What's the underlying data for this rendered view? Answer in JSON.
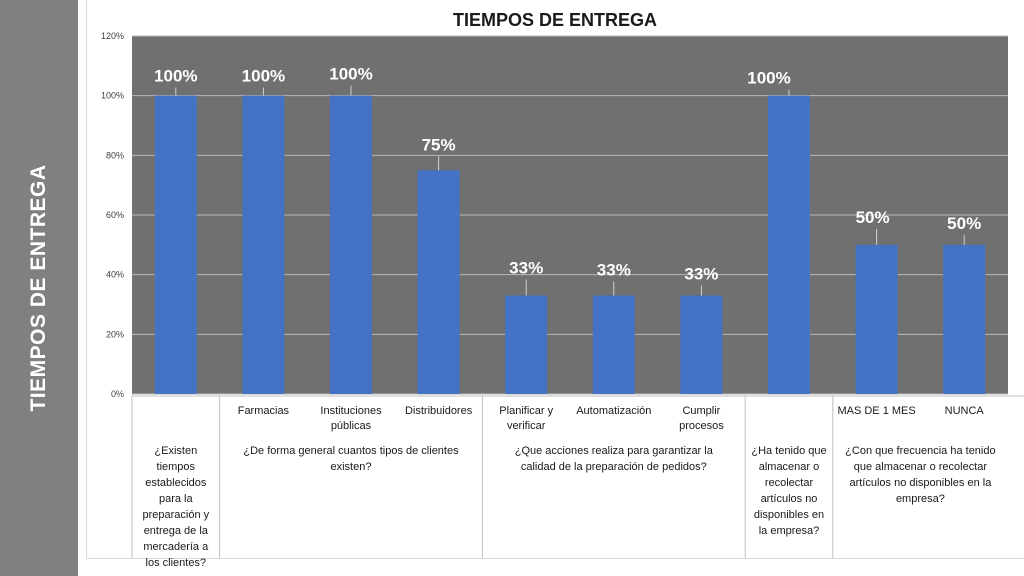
{
  "sidebar": {
    "title": "TIEMPOS DE ENTREGA"
  },
  "colors": {
    "bar": "#4472c4",
    "plot_bg": "#707070",
    "grid": "#b8b8b8",
    "label_line": "#d0d0d0",
    "table_line": "#bfbfbf"
  },
  "chart_data": {
    "type": "bar",
    "title": "TIEMPOS DE ENTREGA",
    "xlabel": "",
    "ylabel": "",
    "ylim": [
      0,
      1.2
    ],
    "y_ticks": [
      "0%",
      "20%",
      "40%",
      "60%",
      "80%",
      "100%",
      "120%"
    ],
    "grid": true,
    "legend": "none",
    "categories": [
      "",
      "Farmacias",
      "Instituciones públicas",
      "Distribuidores",
      "Planificar y verificar",
      "Automatización",
      "Cumplir procesos",
      "",
      "MAS DE 1 MES",
      "NUNCA"
    ],
    "values": [
      1.0,
      1.0,
      1.0,
      0.75,
      0.33,
      0.33,
      0.33,
      1.0,
      0.5,
      0.5
    ],
    "data_labels": [
      "100%",
      "100%",
      "100%",
      "75%",
      "33%",
      "33%",
      "33%",
      "100%",
      "50%",
      "50%"
    ],
    "groups": [
      {
        "question": "¿Existen tiempos establecidos para la preparación y entrega de la mercadería a los clientes?",
        "span": [
          0,
          0
        ]
      },
      {
        "question": "¿De forma general cuantos tipos de clientes existen?",
        "span": [
          1,
          3
        ]
      },
      {
        "question": "¿Que acciones realiza para garantizar la calidad de la preparación de pedidos?",
        "span": [
          4,
          6
        ]
      },
      {
        "question": "¿Ha tenido que almacenar o recolectar artículos no disponibles en la empresa?",
        "span": [
          7,
          7
        ]
      },
      {
        "question": "¿Con que frecuencia ha tenido que almacenar o recolectar artículos no disponibles en la empresa?",
        "span": [
          8,
          9
        ]
      }
    ]
  }
}
